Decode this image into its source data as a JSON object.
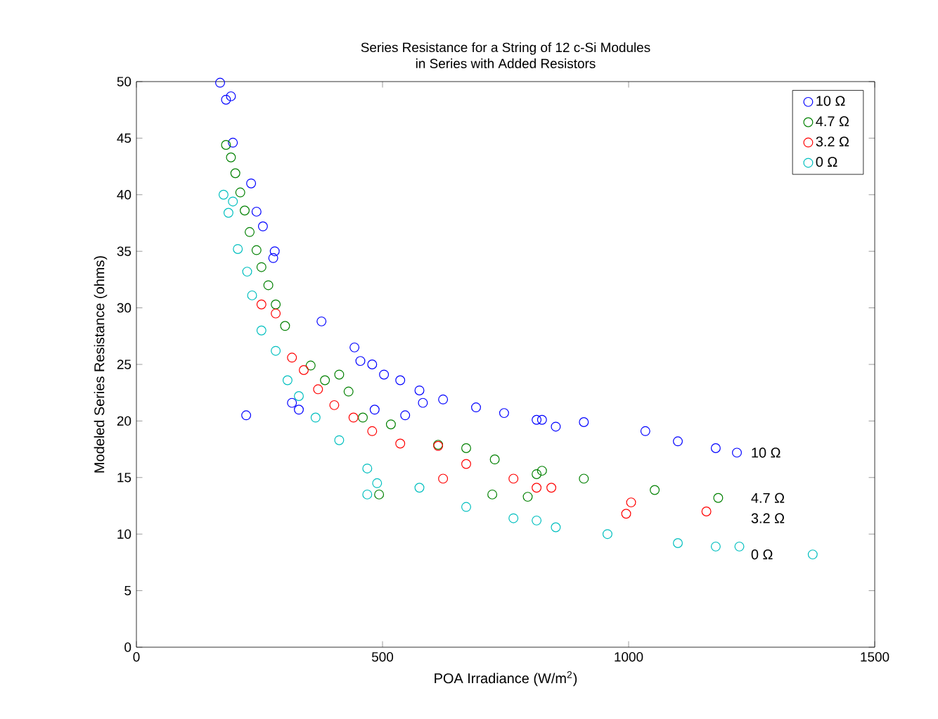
{
  "chart_data": {
    "type": "scatter",
    "title": "Series Resistance for a String of 12 c-Si Modules",
    "subtitle": "in Series with Added Resistors",
    "xlabel": "POA Irradiance (W/m$^{2}$)",
    "ylabel": "Modeled Series Resistance (ohms)",
    "xlim": [
      0,
      1500
    ],
    "ylim": [
      0,
      50
    ],
    "xticks": [
      0,
      500,
      1000,
      1500
    ],
    "yticks": [
      0,
      5,
      10,
      15,
      20,
      25,
      30,
      35,
      40,
      45,
      50
    ],
    "marker": "circle",
    "legend": "top right",
    "series": [
      {
        "name": "10 Ω",
        "color": "#0000ff",
        "x": [
          170,
          182,
          192,
          196,
          233,
          244,
          257,
          278,
          281,
          376,
          223,
          316,
          330,
          443,
          455,
          479,
          484,
          503,
          536,
          546,
          575,
          582,
          623,
          690,
          747,
          813,
          824,
          852,
          909,
          1034,
          1100,
          1177,
          1220
        ],
        "values": [
          49.9,
          48.4,
          48.7,
          44.6,
          41.0,
          38.5,
          37.2,
          34.4,
          35.0,
          28.8,
          20.5,
          21.6,
          21.0,
          26.5,
          25.3,
          25.0,
          21.0,
          24.1,
          23.6,
          20.5,
          22.7,
          21.6,
          21.9,
          21.2,
          20.7,
          20.1,
          20.1,
          19.5,
          19.9,
          19.1,
          18.2,
          17.6,
          17.2
        ]
      },
      {
        "name": "4.7 Ω",
        "color": "#008000",
        "x": [
          182,
          192,
          201,
          211,
          220,
          230,
          244,
          254,
          268,
          283,
          302,
          354,
          383,
          412,
          431,
          460,
          493,
          517,
          613,
          670,
          723,
          728,
          795,
          813,
          824,
          909,
          1053,
          1182
        ],
        "values": [
          44.4,
          43.3,
          41.9,
          40.2,
          38.6,
          36.7,
          35.1,
          33.6,
          32.0,
          30.3,
          28.4,
          24.9,
          23.6,
          24.1,
          22.6,
          20.3,
          13.5,
          19.7,
          17.9,
          17.6,
          13.5,
          16.6,
          13.3,
          15.3,
          15.6,
          14.9,
          13.9,
          13.2
        ]
      },
      {
        "name": "3.2 Ω",
        "color": "#ff0000",
        "x": [
          254,
          283,
          316,
          340,
          369,
          402,
          441,
          479,
          536,
          613,
          623,
          670,
          766,
          813,
          843,
          995,
          1005,
          1158
        ],
        "values": [
          30.3,
          29.5,
          25.6,
          24.5,
          22.8,
          21.4,
          20.3,
          19.1,
          18.0,
          17.8,
          14.9,
          16.2,
          14.9,
          14.1,
          14.1,
          11.8,
          12.8,
          12.0
        ]
      },
      {
        "name": "0 Ω",
        "color": "#00bfbf",
        "x": [
          177,
          187,
          196,
          206,
          225,
          235,
          254,
          283,
          307,
          330,
          364,
          412,
          469,
          469,
          489,
          575,
          670,
          766,
          813,
          852,
          957,
          1100,
          1177,
          1225,
          1374
        ],
        "values": [
          40.0,
          38.4,
          39.4,
          35.2,
          33.2,
          31.1,
          28.0,
          26.2,
          23.6,
          22.2,
          20.3,
          18.3,
          15.8,
          13.5,
          14.5,
          14.1,
          12.4,
          11.4,
          11.2,
          10.6,
          10.0,
          9.2,
          8.9,
          8.9,
          8.2
        ]
      }
    ],
    "annotations": [
      "10 Ω",
      "4.7 Ω",
      "3.2 Ω",
      "0 Ω"
    ]
  }
}
